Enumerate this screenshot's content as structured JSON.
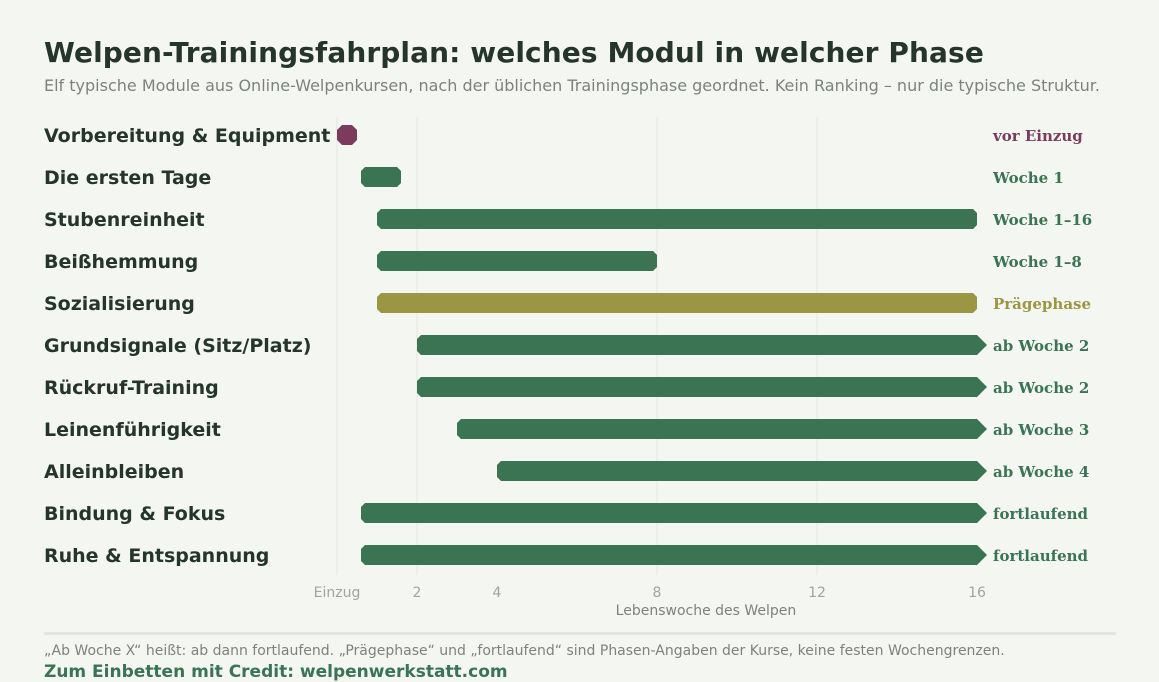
{
  "header": {
    "title": "Welpen-Trainingsfahrplan: welches Modul in welcher Phase",
    "subtitle": "Elf typische Module aus Online-Welpenkursen, nach der üblichen Trainingsphase geordnet. Kein Ranking – nur die typische Struktur."
  },
  "chart_data": {
    "type": "bar",
    "orientation": "horizontal-range",
    "xlabel": "Lebenswoche des Welpen",
    "x_ticks": [
      {
        "value": -1,
        "label": "Einzug"
      },
      {
        "value": 2,
        "label": "2"
      },
      {
        "value": 4,
        "label": "4"
      },
      {
        "value": 8,
        "label": "8"
      },
      {
        "value": 12,
        "label": "12"
      },
      {
        "value": 16,
        "label": "16"
      }
    ],
    "gridlines_at": [
      -1,
      2,
      8,
      12
    ],
    "xlim": [
      -1,
      16
    ],
    "colors": {
      "vor_einzug": "#7a3b5c",
      "woche": "#3a7453",
      "praegephase": "#9a9644",
      "grid": "#e4e7e1",
      "tick": "#a0a59e"
    },
    "modules": [
      {
        "name": "Vorbereitung & Equipment",
        "start": -1,
        "end": -1,
        "label": "vor Einzug",
        "color_key": "vor_einzug",
        "open_end": false,
        "point": true
      },
      {
        "name": "Die ersten Tage",
        "start": 0.6,
        "end": 1.6,
        "label": "Woche 1",
        "color_key": "woche",
        "open_end": false
      },
      {
        "name": "Stubenreinheit",
        "start": 1,
        "end": 16,
        "label": "Woche 1–16",
        "color_key": "woche",
        "open_end": false
      },
      {
        "name": "Beißhemmung",
        "start": 1,
        "end": 8,
        "label": "Woche 1–8",
        "color_key": "woche",
        "open_end": false
      },
      {
        "name": "Sozialisierung",
        "start": 1,
        "end": 16,
        "label": "Prägephase",
        "color_key": "praegephase",
        "open_end": false
      },
      {
        "name": "Grundsignale (Sitz/Platz)",
        "start": 2,
        "end": 16,
        "label": "ab Woche 2",
        "color_key": "woche",
        "open_end": true
      },
      {
        "name": "Rückruf-Training",
        "start": 2,
        "end": 16,
        "label": "ab Woche 2",
        "color_key": "woche",
        "open_end": true
      },
      {
        "name": "Leinenführigkeit",
        "start": 3,
        "end": 16,
        "label": "ab Woche 3",
        "color_key": "woche",
        "open_end": true
      },
      {
        "name": "Alleinbleiben",
        "start": 4,
        "end": 16,
        "label": "ab Woche 4",
        "color_key": "woche",
        "open_end": true
      },
      {
        "name": "Bindung & Fokus",
        "start": 0.6,
        "end": 16,
        "label": "fortlaufend",
        "color_key": "woche",
        "open_end": true
      },
      {
        "name": "Ruhe & Entspannung",
        "start": 0.6,
        "end": 16,
        "label": "fortlaufend",
        "color_key": "woche",
        "open_end": true
      }
    ]
  },
  "footer": {
    "note": "„Ab Woche X“ heißt: ab dann fortlaufend. „Prägephase“ und „fortlaufend“ sind Phasen-Angaben der Kurse, keine festen Wochengrenzen.",
    "credit": "Zum Einbetten mit Credit: welpenwerkstatt.com"
  }
}
